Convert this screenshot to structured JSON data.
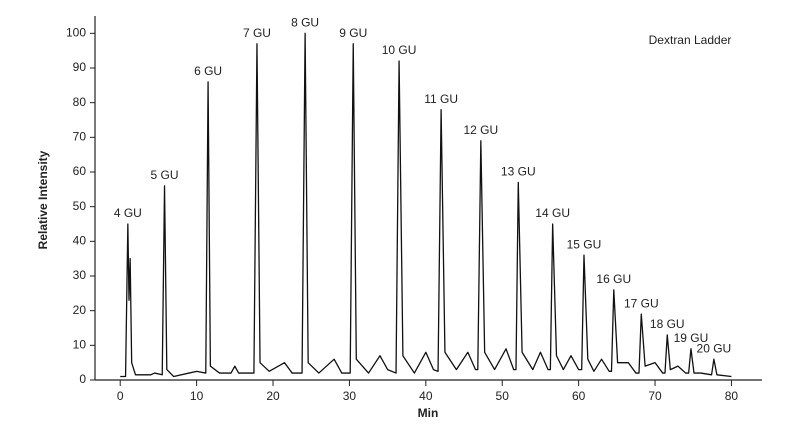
{
  "chart_data": {
    "type": "line",
    "title": "Dextran Ladder",
    "x_label": "Min",
    "y_label": "Relative Intensity",
    "xlim": [
      -3.3,
      84
    ],
    "ylim": [
      0,
      105
    ],
    "xticks": [
      0,
      10,
      20,
      30,
      40,
      50,
      60,
      70,
      80
    ],
    "yticks": [
      0,
      10,
      20,
      30,
      40,
      50,
      60,
      70,
      80,
      90,
      100
    ],
    "color": "#111111",
    "peak_labels": [
      "4 GU",
      "5 GU",
      "6 GU",
      "7 GU",
      "8 GU",
      "9 GU",
      "10 GU",
      "11 GU",
      "12 GU",
      "13 GU",
      "14 GU",
      "15 GU",
      "16 GU",
      "17 GU",
      "18 GU",
      "19 GU",
      "20 GU"
    ],
    "x": [
      0,
      0.7,
      1.0,
      1.15,
      1.3,
      1.5,
      2.0,
      4.0,
      4.5,
      5.5,
      5.8,
      6.1,
      7,
      9,
      10,
      11.2,
      11.5,
      11.8,
      13,
      14.5,
      15,
      15.5,
      17.5,
      17.9,
      18.3,
      19.5,
      21.5,
      22.5,
      23.8,
      24.2,
      24.6,
      26,
      28,
      29,
      30.1,
      30.5,
      30.9,
      32.5,
      34,
      35,
      36.1,
      36.5,
      37,
      38.5,
      40,
      41,
      41.6,
      42.0,
      42.5,
      44,
      45.5,
      46.5,
      46.8,
      47.2,
      47.7,
      49,
      50.5,
      51.5,
      51.8,
      52.1,
      52.6,
      54,
      55,
      56,
      56.3,
      56.6,
      57.1,
      58,
      59,
      60,
      60.4,
      60.7,
      61.2,
      62,
      63,
      64,
      64.3,
      64.6,
      65.1,
      66.5,
      67.5,
      67.9,
      68.2,
      68.7,
      70,
      71,
      71.3,
      71.6,
      72,
      73,
      74,
      74.4,
      74.7,
      75.1,
      76,
      77.4,
      77.7,
      78.1,
      80
    ],
    "y": [
      1,
      1,
      45,
      23,
      35,
      5,
      1.5,
      1.5,
      2,
      1.5,
      56,
      3,
      1,
      2,
      2.5,
      2,
      86,
      4,
      2,
      2,
      4,
      2,
      2,
      97,
      5,
      2.5,
      5,
      2,
      2,
      100,
      5,
      2,
      6,
      2,
      2,
      97,
      6,
      2,
      7,
      3,
      2,
      92,
      7,
      2,
      8,
      3,
      2.5,
      78,
      8,
      3,
      8,
      3,
      3,
      69,
      8,
      3,
      9,
      3,
      3,
      57,
      8,
      3,
      8,
      3,
      3,
      45,
      7,
      3,
      7,
      3,
      3,
      36,
      6,
      2.5,
      6,
      2.5,
      2.5,
      26,
      5,
      5,
      2,
      2,
      19,
      4,
      5,
      2,
      2,
      13,
      3,
      4,
      2,
      2,
      9,
      2,
      2,
      1.5,
      6,
      1.5,
      1
    ]
  }
}
